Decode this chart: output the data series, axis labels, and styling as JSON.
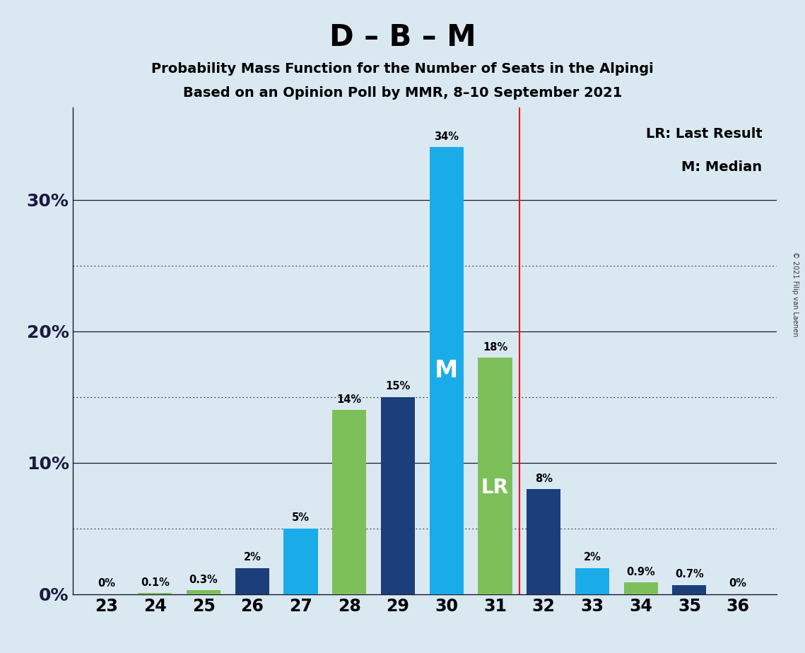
{
  "title": "D – B – M",
  "subtitle1": "Probability Mass Function for the Number of Seats in the Alpingi",
  "subtitle2": "Based on an Opinion Poll by MMR, 8–10 September 2021",
  "copyright": "© 2021 Filip van Laenen",
  "seats": [
    23,
    24,
    25,
    26,
    27,
    28,
    29,
    30,
    31,
    32,
    33,
    34,
    35,
    36
  ],
  "seat_colors": {
    "23": "#1AACE8",
    "24": "#7DC05A",
    "25": "#7DC05A",
    "26": "#1A3F7A",
    "27": "#1AACE8",
    "28": "#7DC05A",
    "29": "#1A3F7A",
    "30": "#1AACE8",
    "31": "#7DC05A",
    "32": "#1A3F7A",
    "33": "#1AACE8",
    "34": "#7DC05A",
    "35": "#1A3F7A",
    "36": "#1A3F7A"
  },
  "seat_values": {
    "23": 0.0,
    "24": 0.1,
    "25": 0.3,
    "26": 2.0,
    "27": 5.0,
    "28": 14.0,
    "29": 15.0,
    "30": 34.0,
    "31": 18.0,
    "32": 8.0,
    "33": 2.0,
    "34": 0.9,
    "35": 0.7,
    "36": 0.0
  },
  "seat_labels": {
    "23": "0%",
    "24": "0.1%",
    "25": "0.3%",
    "26": "2%",
    "27": "5%",
    "28": "14%",
    "29": "15%",
    "30": "34%",
    "31": "18%",
    "32": "8%",
    "33": "2%",
    "34": "0.9%",
    "35": "0.7%",
    "36": "0%"
  },
  "cyan_color": "#1AACE8",
  "green_color": "#7DC05A",
  "darkblue_color": "#1A3F7A",
  "red_line_x": 31.5,
  "median_seat": 30,
  "lr_seat": 31,
  "bg_color": "#DAE8F2",
  "plot_bg_color": "#DAE8F2",
  "ylim": [
    0,
    37
  ],
  "solid_grid": [
    10,
    20,
    30
  ],
  "dotted_grid": [
    5,
    15,
    25
  ],
  "ytick_positions": [
    0,
    10,
    20,
    30
  ],
  "ytick_labels": [
    "0%",
    "10%",
    "20%",
    "30%"
  ],
  "grid_color": "#1A1A2E",
  "legend_text1": "LR: Last Result",
  "legend_text2": "M: Median",
  "bar_width": 0.7
}
